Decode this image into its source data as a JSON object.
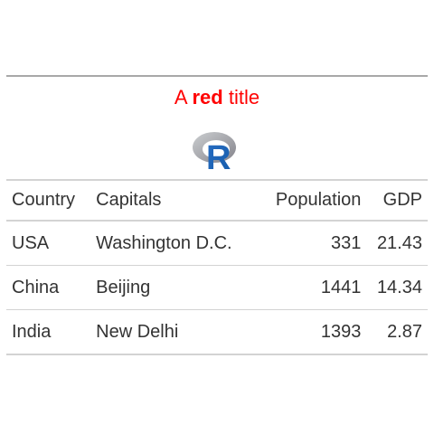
{
  "title": {
    "prefix": "A ",
    "bold": "red",
    "suffix": " title",
    "color": "#ff0000"
  },
  "logo": {
    "icon": "r-logo-icon",
    "letter": "R"
  },
  "table": {
    "columns": [
      "Country",
      "Capitals",
      "Population",
      "GDP"
    ],
    "rows": [
      [
        "USA",
        "Washington D.C.",
        "331",
        "21.43"
      ],
      [
        "China",
        "Beijing",
        "1441",
        "14.34"
      ],
      [
        "India",
        "New Delhi",
        "1393",
        "2.87"
      ]
    ]
  }
}
